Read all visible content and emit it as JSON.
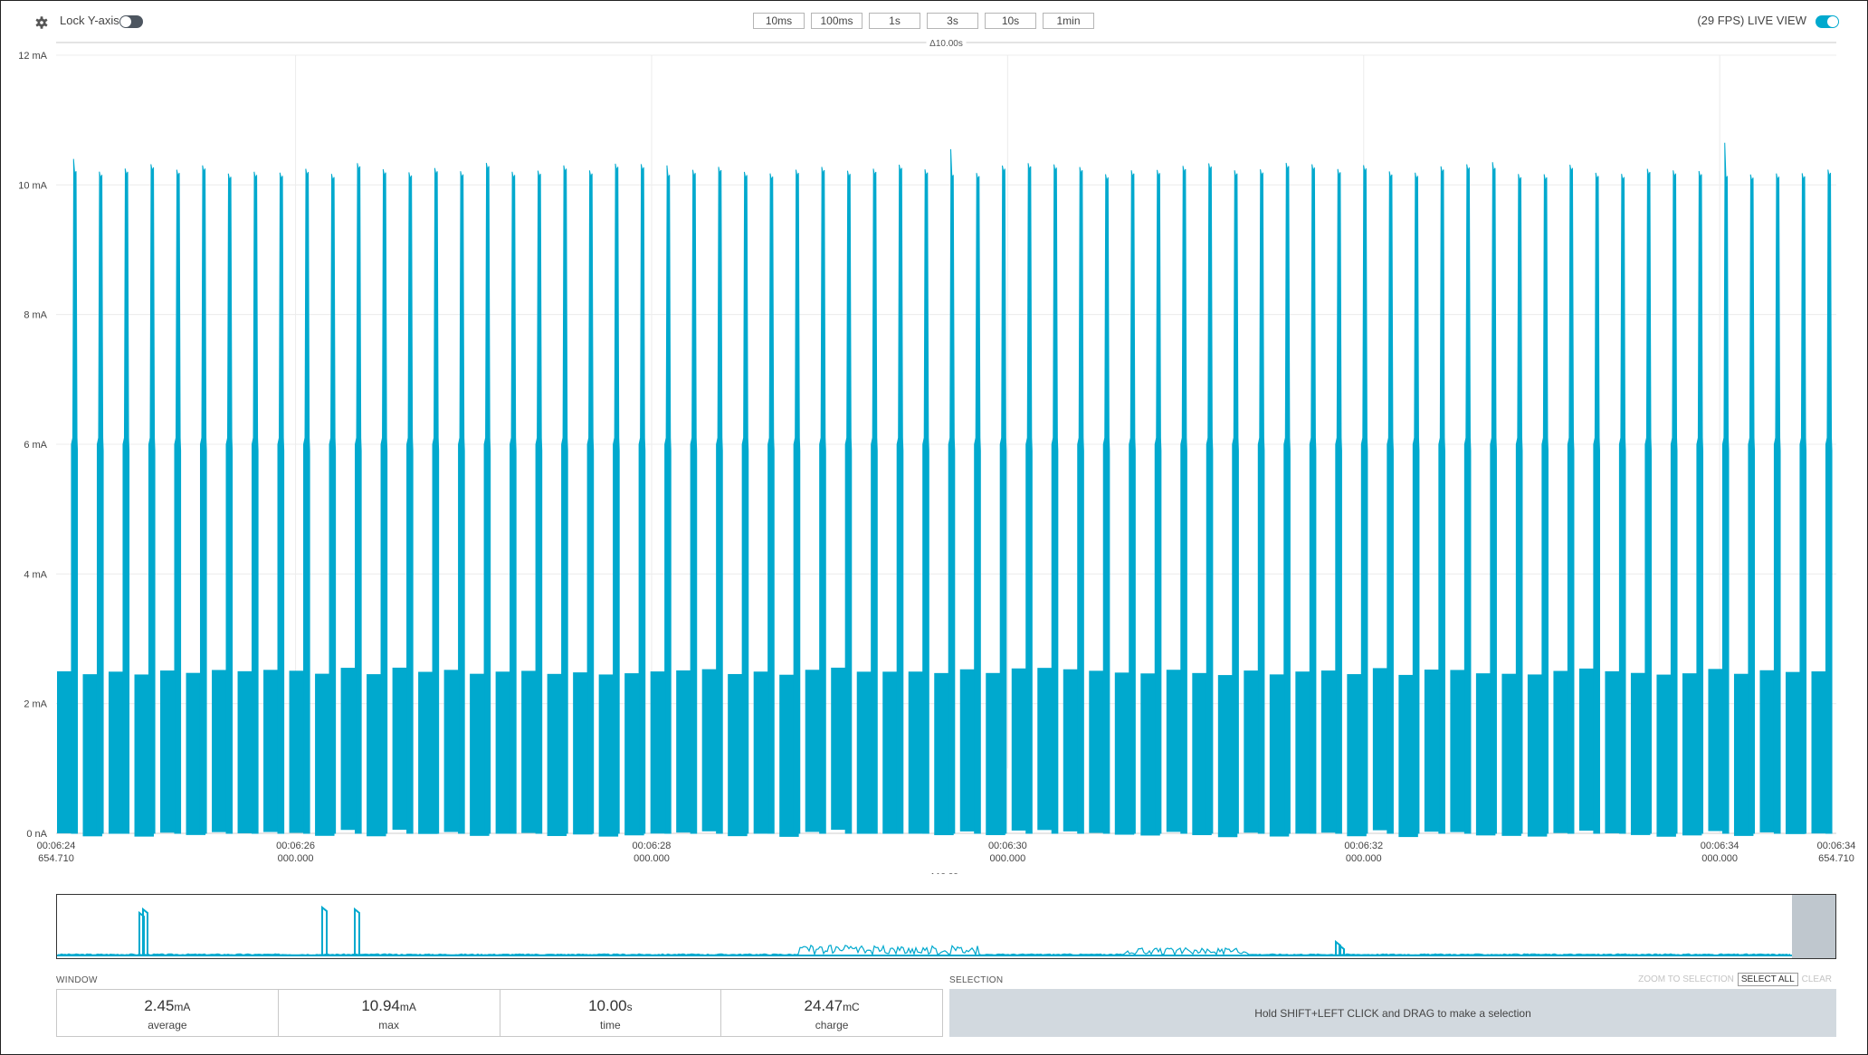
{
  "toolbar": {
    "settings_icon": "gear-icon",
    "lock_label": "Lock Y-axis",
    "lock_on": false,
    "zoom_buttons": [
      "10ms",
      "100ms",
      "1s",
      "3s",
      "10s",
      "1min"
    ],
    "live_label": "(29 FPS) LIVE VIEW",
    "live_on": true
  },
  "chart_data": {
    "type": "line",
    "ylim": [
      0,
      12
    ],
    "y_ticks": [
      "0 nA",
      "2 mA",
      "4 mA",
      "6 mA",
      "8 mA",
      "10 mA",
      "12 mA"
    ],
    "x_ticks": [
      {
        "time": "00:06:24",
        "sub": "654.710"
      },
      {
        "time": "00:06:26",
        "sub": "000.000"
      },
      {
        "time": "00:06:28",
        "sub": "000.000"
      },
      {
        "time": "00:06:30",
        "sub": "000.000"
      },
      {
        "time": "00:06:32",
        "sub": "000.000"
      },
      {
        "time": "00:06:34",
        "sub": "000.000"
      },
      {
        "time": "00:06:34",
        "sub": "654.710"
      }
    ],
    "x_seconds": [
      0,
      1.345,
      3.345,
      5.345,
      7.345,
      9.345,
      10.0
    ],
    "span_label": "Δ10.00s",
    "series_color": "#00a9ce",
    "pulse_count": 69,
    "baseline_high_mA": 2.5,
    "pulse_high_mA": 10.2,
    "shoulder_mA": 6.1,
    "grid": true
  },
  "overview": {
    "span_label": "Δ10.00s"
  },
  "window": {
    "label": "WINDOW",
    "stats": [
      {
        "value": "2.45",
        "unit": "mA",
        "label": "average"
      },
      {
        "value": "10.94",
        "unit": "mA",
        "label": "max"
      },
      {
        "value": "10.00",
        "unit": "s",
        "label": "time"
      },
      {
        "value": "24.47",
        "unit": "mC",
        "label": "charge"
      }
    ]
  },
  "selection": {
    "label": "SELECTION",
    "zoom_to_selection": "ZOOM TO SELECTION",
    "select_all": "SELECT ALL",
    "clear": "CLEAR",
    "hint": "Hold SHIFT+LEFT CLICK and DRAG to make a selection"
  }
}
